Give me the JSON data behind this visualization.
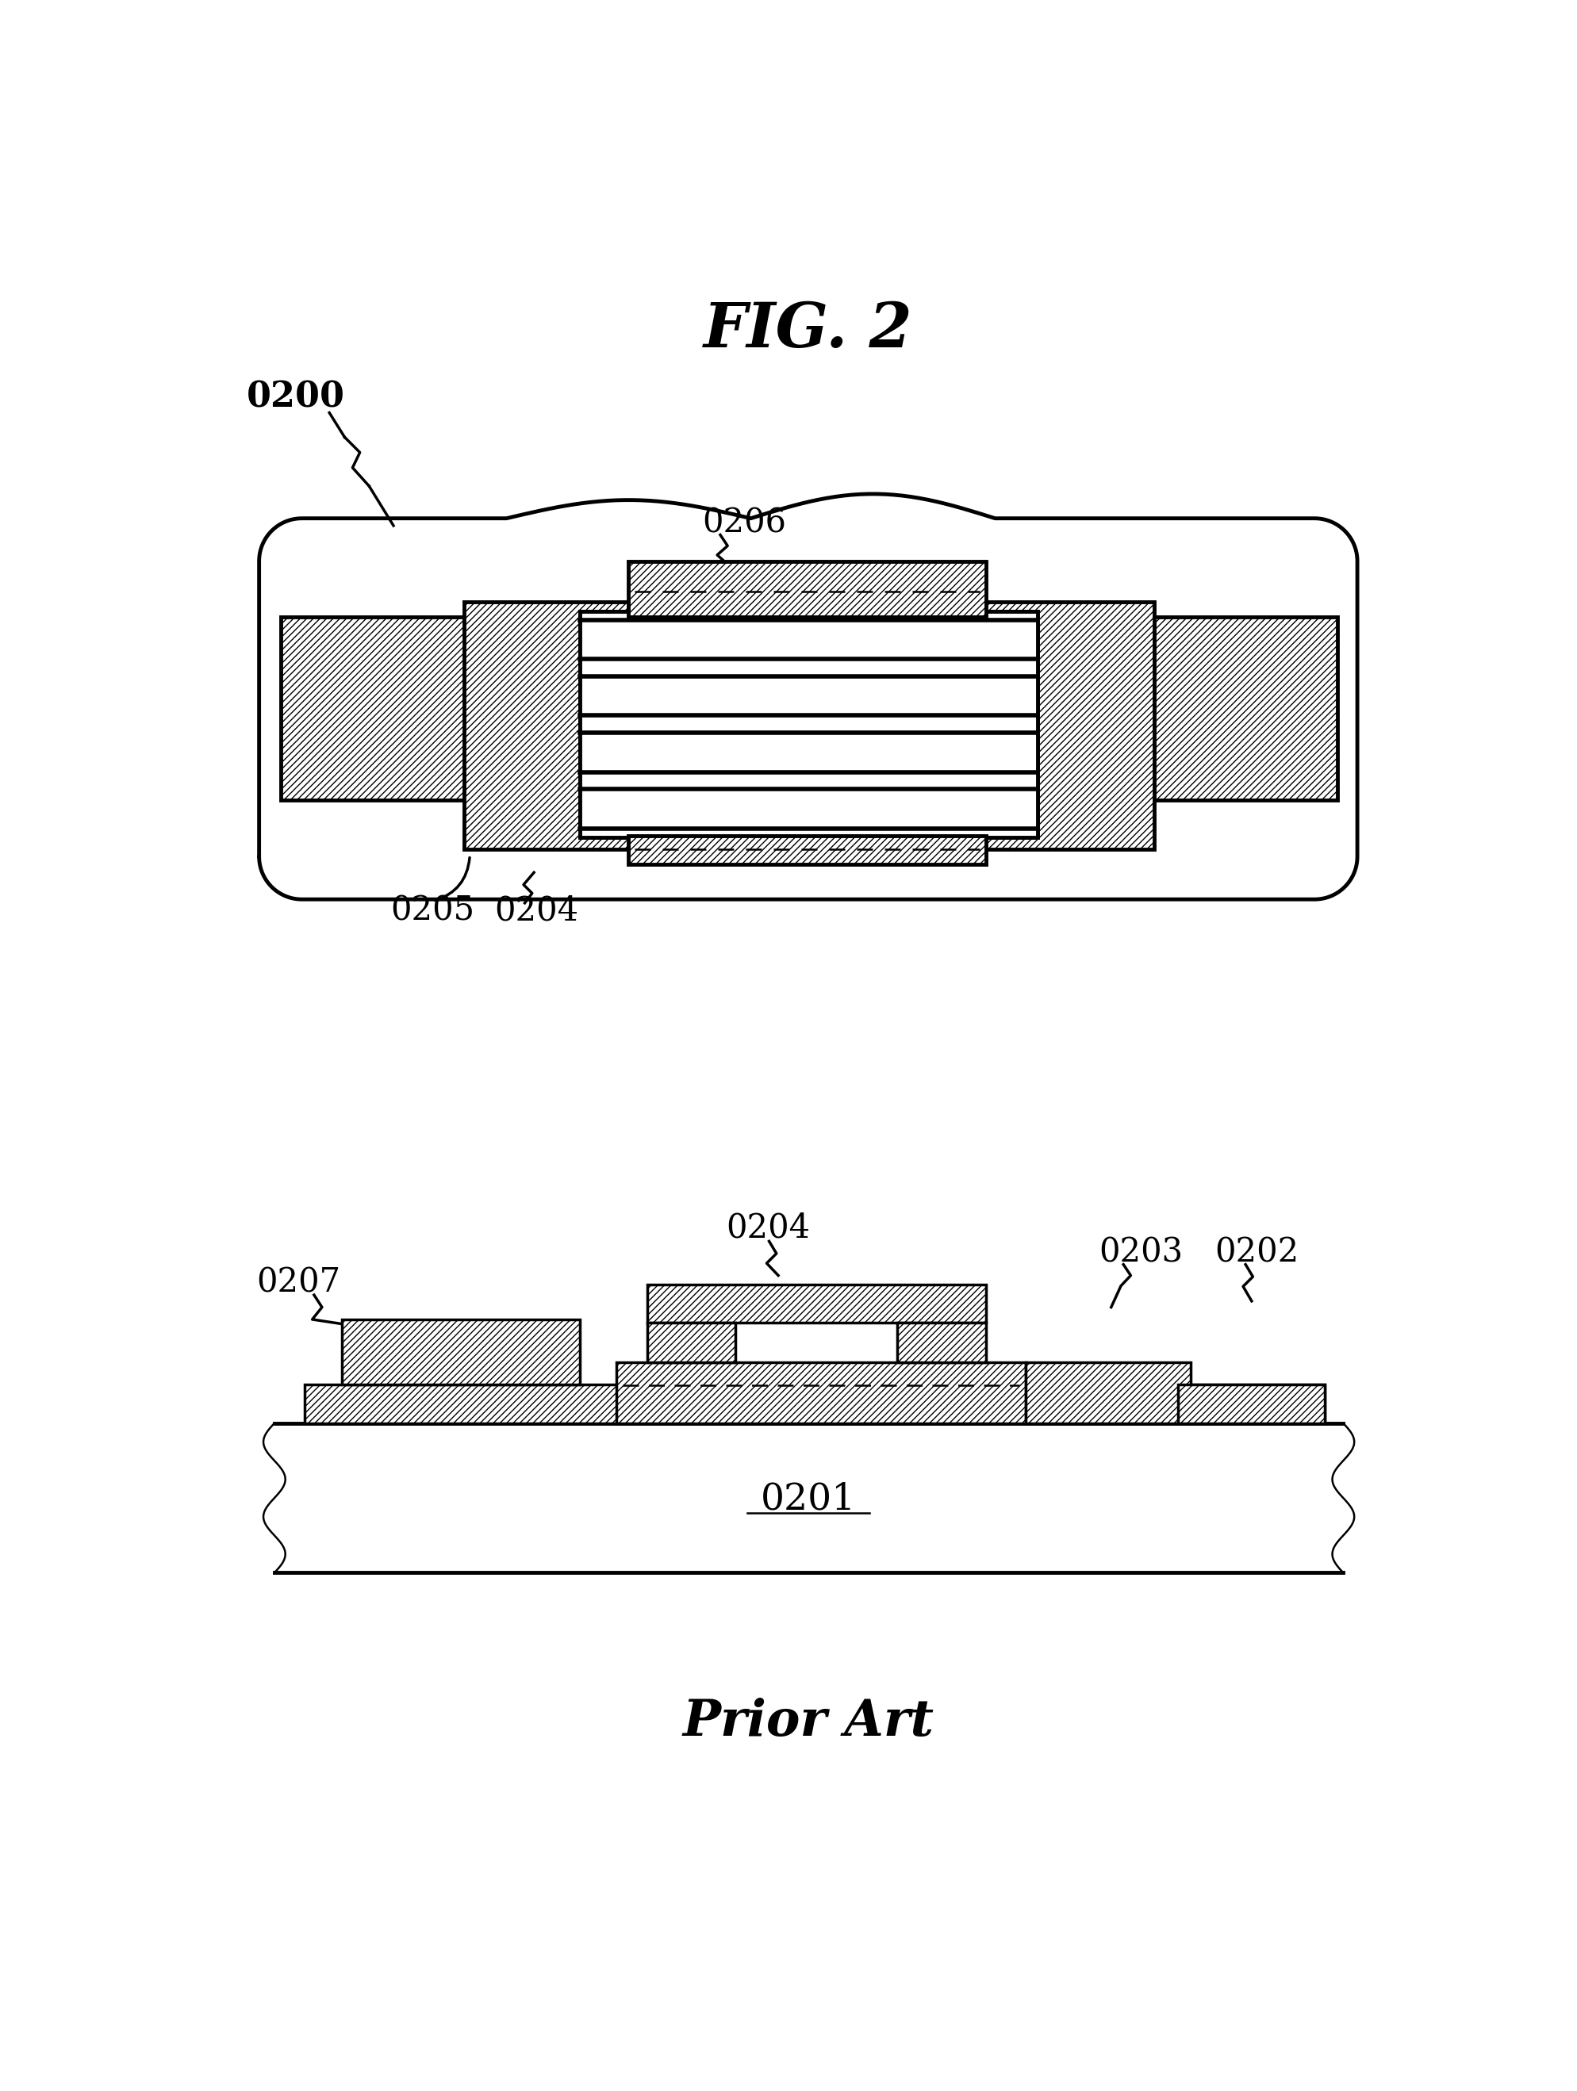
{
  "title": "FIG. 2",
  "bg_color": "#ffffff",
  "label_0200": "0200",
  "label_0201": "0201",
  "label_0202": "0202",
  "label_0203": "0203",
  "label_0204": "0204",
  "label_0205": "0205",
  "label_0206": "0206",
  "label_0207": "0207",
  "prior_art": "Prior Art",
  "lw_main": 3.5,
  "lw_medium": 2.5,
  "lw_thin": 1.8
}
